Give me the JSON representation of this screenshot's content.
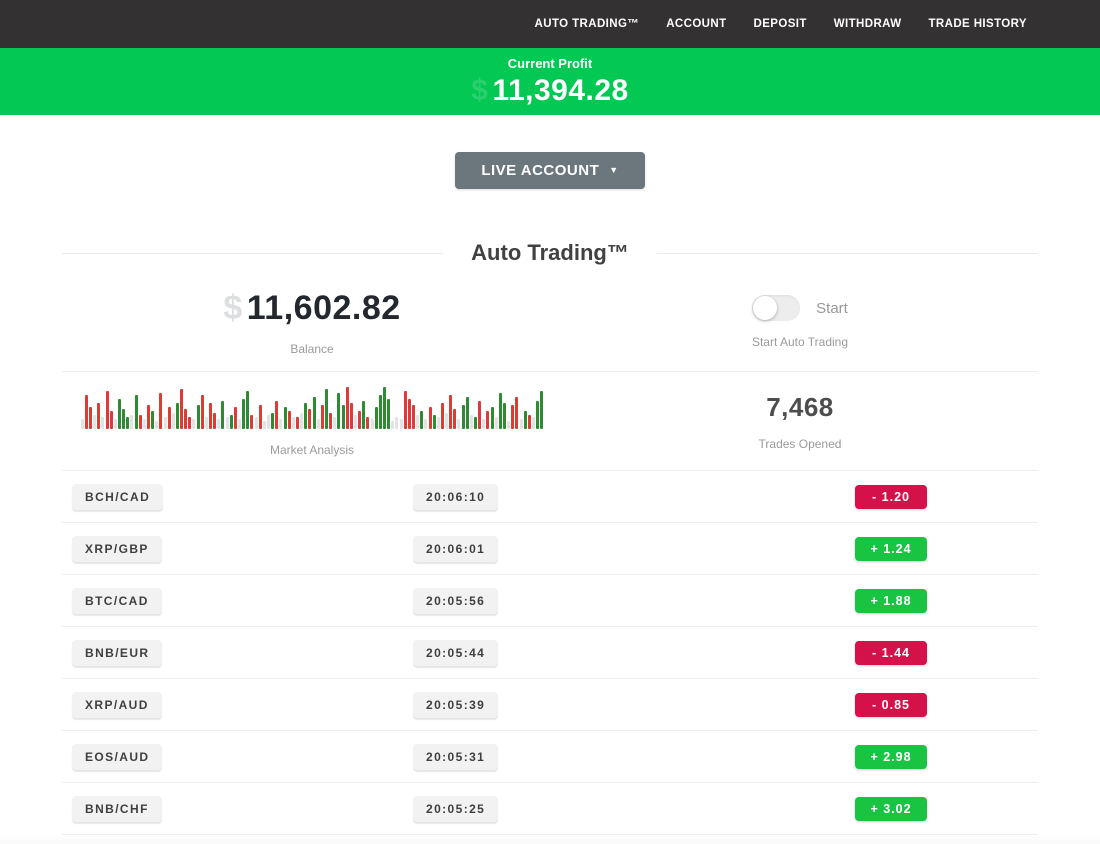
{
  "nav": {
    "items": [
      {
        "label": "AUTO TRADING™"
      },
      {
        "label": "ACCOUNT"
      },
      {
        "label": "DEPOSIT"
      },
      {
        "label": "WITHDRAW"
      },
      {
        "label": "TRADE HISTORY"
      }
    ]
  },
  "profit_banner": {
    "label": "Current Profit",
    "currency_hint": "$",
    "amount": "11,394.28",
    "background_color": "#03c853"
  },
  "account_selector": {
    "label": "LIVE ACCOUNT",
    "caret": "▼"
  },
  "section": {
    "title": "Auto Trading™"
  },
  "stats": {
    "balance": {
      "currency_hint": "$",
      "value": "11,602.82",
      "label": "Balance"
    },
    "auto_trading": {
      "toggle_state": "off",
      "toggle_label": "Start",
      "label": "Start Auto Trading"
    },
    "market_analysis": {
      "label": "Market Analysis"
    },
    "trades_opened": {
      "value": "7,468",
      "label": "Trades Opened"
    }
  },
  "chart_data": {
    "type": "bar",
    "title": "Market Analysis",
    "legend": "decorative tick bars; color = direction (red down, green up, gray neutral), height = magnitude px",
    "colors": {
      "r": "#dd3b35",
      "g": "#2e8b33",
      "n": "#e3e3e3"
    },
    "bars": [
      [
        "n",
        10
      ],
      [
        "r",
        34
      ],
      [
        "r",
        22
      ],
      [
        "n",
        14
      ],
      [
        "r",
        26
      ],
      [
        "n",
        12
      ],
      [
        "r",
        38
      ],
      [
        "r",
        18
      ],
      [
        "n",
        10
      ],
      [
        "g",
        30
      ],
      [
        "g",
        20
      ],
      [
        "g",
        12
      ],
      [
        "n",
        14
      ],
      [
        "g",
        34
      ],
      [
        "r",
        14
      ],
      [
        "n",
        10
      ],
      [
        "r",
        24
      ],
      [
        "g",
        18
      ],
      [
        "n",
        8
      ],
      [
        "r",
        36
      ],
      [
        "n",
        12
      ],
      [
        "r",
        22
      ],
      [
        "n",
        16
      ],
      [
        "g",
        26
      ],
      [
        "r",
        40
      ],
      [
        "r",
        20
      ],
      [
        "r",
        12
      ],
      [
        "n",
        10
      ],
      [
        "g",
        24
      ],
      [
        "r",
        34
      ],
      [
        "n",
        12
      ],
      [
        "r",
        26
      ],
      [
        "r",
        16
      ],
      [
        "n",
        10
      ],
      [
        "g",
        28
      ],
      [
        "n",
        12
      ],
      [
        "g",
        14
      ],
      [
        "r",
        22
      ],
      [
        "n",
        10
      ],
      [
        "g",
        30
      ],
      [
        "g",
        38
      ],
      [
        "r",
        14
      ],
      [
        "n",
        12
      ],
      [
        "r",
        24
      ],
      [
        "n",
        8
      ],
      [
        "n",
        14
      ],
      [
        "g",
        16
      ],
      [
        "r",
        28
      ],
      [
        "n",
        10
      ],
      [
        "g",
        22
      ],
      [
        "r",
        18
      ],
      [
        "n",
        12
      ],
      [
        "r",
        12
      ],
      [
        "n",
        16
      ],
      [
        "g",
        26
      ],
      [
        "r",
        20
      ],
      [
        "g",
        32
      ],
      [
        "n",
        10
      ],
      [
        "r",
        24
      ],
      [
        "g",
        40
      ],
      [
        "r",
        16
      ],
      [
        "n",
        12
      ],
      [
        "g",
        36
      ],
      [
        "g",
        24
      ],
      [
        "r",
        42
      ],
      [
        "r",
        26
      ],
      [
        "n",
        14
      ],
      [
        "r",
        18
      ],
      [
        "g",
        28
      ],
      [
        "r",
        12
      ],
      [
        "n",
        10
      ],
      [
        "g",
        22
      ],
      [
        "g",
        34
      ],
      [
        "g",
        42
      ],
      [
        "g",
        30
      ],
      [
        "n",
        8
      ],
      [
        "n",
        12
      ],
      [
        "n",
        10
      ],
      [
        "r",
        38
      ],
      [
        "r",
        30
      ],
      [
        "r",
        24
      ],
      [
        "n",
        14
      ],
      [
        "g",
        18
      ],
      [
        "n",
        10
      ],
      [
        "r",
        22
      ],
      [
        "g",
        14
      ],
      [
        "n",
        12
      ],
      [
        "r",
        26
      ],
      [
        "n",
        16
      ],
      [
        "r",
        34
      ],
      [
        "r",
        20
      ],
      [
        "n",
        10
      ],
      [
        "g",
        24
      ],
      [
        "g",
        32
      ],
      [
        "n",
        14
      ],
      [
        "g",
        12
      ],
      [
        "r",
        28
      ],
      [
        "n",
        10
      ],
      [
        "r",
        18
      ],
      [
        "g",
        22
      ],
      [
        "n",
        12
      ],
      [
        "g",
        36
      ],
      [
        "g",
        26
      ],
      [
        "n",
        8
      ],
      [
        "r",
        24
      ],
      [
        "r",
        32
      ],
      [
        "n",
        10
      ],
      [
        "g",
        18
      ],
      [
        "r",
        14
      ],
      [
        "n",
        12
      ],
      [
        "g",
        28
      ],
      [
        "g",
        38
      ]
    ]
  },
  "trades": [
    {
      "pair": "BCH/CAD",
      "time": "20:06:10",
      "change": "-  1.20",
      "direction": "loss"
    },
    {
      "pair": "XRP/GBP",
      "time": "20:06:01",
      "change": "+  1.24",
      "direction": "gain"
    },
    {
      "pair": "BTC/CAD",
      "time": "20:05:56",
      "change": "+  1.88",
      "direction": "gain"
    },
    {
      "pair": "BNB/EUR",
      "time": "20:05:44",
      "change": "-  1.44",
      "direction": "loss"
    },
    {
      "pair": "XRP/AUD",
      "time": "20:05:39",
      "change": "-  0.85",
      "direction": "loss"
    },
    {
      "pair": "EOS/AUD",
      "time": "20:05:31",
      "change": "+  2.98",
      "direction": "gain"
    },
    {
      "pair": "BNB/CHF",
      "time": "20:05:25",
      "change": "+  3.02",
      "direction": "gain"
    }
  ],
  "colors": {
    "nav_background": "#333132",
    "banner_green": "#03c853",
    "badge_gain_green": "#1ac443",
    "badge_loss_red": "#d5114a",
    "account_button_gray": "#6c767d"
  }
}
